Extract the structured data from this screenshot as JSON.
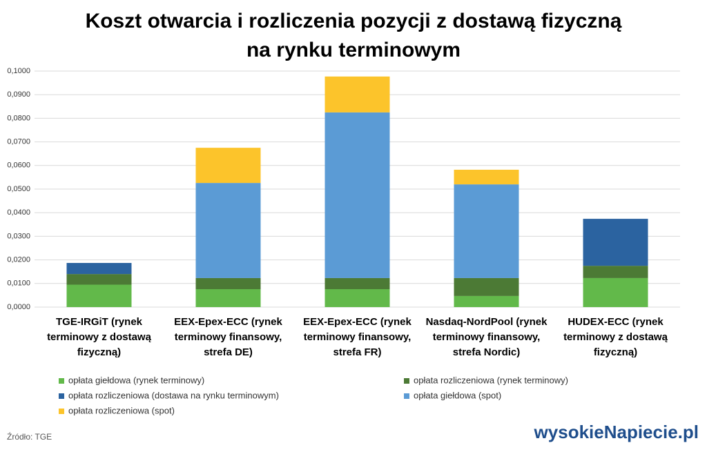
{
  "chart_data": {
    "type": "stacked_bar",
    "title": "Koszt otwarcia i rozliczenia pozycji z dostawą fizyczną na rynku terminowym",
    "categories": [
      "TGE-IRGiT (rynek terminowy z dostawą fizyczną)",
      "EEX-Epex-ECC (rynek terminowy finansowy, strefa DE)",
      "EEX-Epex-ECC (rynek terminowy finansowy, strefa FR)",
      "Nasdaq-NordPool (rynek terminowy finansowy, strefa Nordic)",
      "HUDEX-ECC (rynek terminowy z dostawą fizyczną)"
    ],
    "series": [
      {
        "name": "opłata giełdowa (rynek terminowy)",
        "color": "#62b94a",
        "values": [
          0.0095,
          0.0076,
          0.0076,
          0.0047,
          0.0123
        ]
      },
      {
        "name": "opłata rozliczeniowa (rynek terminowy)",
        "color": "#4c7a35",
        "values": [
          0.0045,
          0.0047,
          0.0047,
          0.0076,
          0.0052
        ]
      },
      {
        "name": "opłata rozliczeniowa (dostawa na rynku terminowym)",
        "color": "#2b63a0",
        "values": [
          0.0047,
          0,
          0,
          0,
          0.0199
        ]
      },
      {
        "name": "opłata giełdowa (spot)",
        "color": "#5b9bd5",
        "values": [
          0,
          0.0403,
          0.0702,
          0.0397,
          0
        ]
      },
      {
        "name": "opłata rozliczeniowa (spot)",
        "color": "#fcc42b",
        "values": [
          0,
          0.0149,
          0.0152,
          0.0062,
          0
        ]
      }
    ],
    "ylim": [
      0,
      0.1
    ],
    "yticks": [
      {
        "value": 0,
        "label": "0,0000"
      },
      {
        "value": 0.01,
        "label": "0,0100"
      },
      {
        "value": 0.02,
        "label": "0,0200"
      },
      {
        "value": 0.03,
        "label": "0,0300"
      },
      {
        "value": 0.04,
        "label": "0,0400"
      },
      {
        "value": 0.05,
        "label": "0,0500"
      },
      {
        "value": 0.06,
        "label": "0,0600"
      },
      {
        "value": 0.07,
        "label": "0,0700"
      },
      {
        "value": 0.08,
        "label": "0,0800"
      },
      {
        "value": 0.09,
        "label": "0,0900"
      },
      {
        "value": 0.1,
        "label": "0,1000"
      }
    ],
    "grid": true,
    "source": "Źródło: TGE",
    "logo": "wysokieNapiecie.pl"
  }
}
